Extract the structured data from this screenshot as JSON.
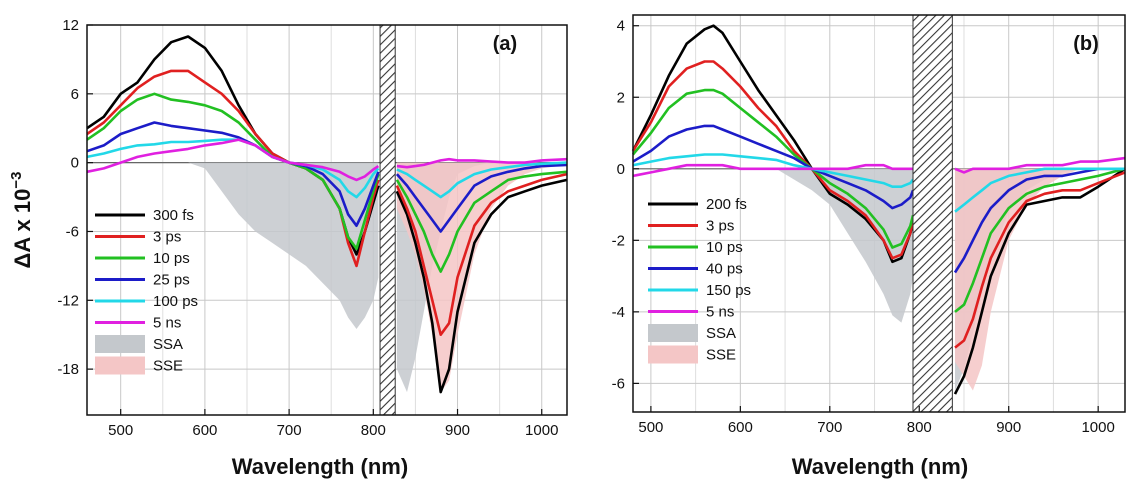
{
  "chart_data": [
    {
      "type": "line",
      "panel_label": "(a)",
      "xlabel": "Wavelength (nm)",
      "ylabel": "ΔA x 10",
      "ylabel_exponent": "−3",
      "xlim": [
        460,
        1030
      ],
      "ylim": [
        -22,
        12
      ],
      "xticks": [
        500,
        600,
        700,
        800,
        900,
        1000
      ],
      "yticks": [
        -18,
        -12,
        -6,
        0,
        6,
        12
      ],
      "grid": true,
      "legend_position": "bottom-left",
      "excluded_region": [
        808,
        826
      ],
      "x": [
        460,
        480,
        500,
        520,
        540,
        560,
        580,
        600,
        620,
        640,
        660,
        680,
        700,
        720,
        740,
        760,
        770,
        780,
        790,
        800,
        806,
        828,
        840,
        850,
        860,
        870,
        880,
        890,
        900,
        920,
        940,
        960,
        980,
        1000,
        1030
      ],
      "series": [
        {
          "name": "300 fs",
          "color": "#000000",
          "values": [
            3,
            4,
            6,
            7,
            9,
            10.5,
            11,
            10,
            8,
            5,
            2.5,
            0.8,
            0,
            -0.5,
            -1.5,
            -4,
            -6.5,
            -8,
            -6,
            -3.5,
            -2,
            -2.5,
            -4.5,
            -7,
            -10,
            -14,
            -20,
            -18,
            -13,
            -7,
            -4.5,
            -3,
            -2.5,
            -2,
            -1.5
          ]
        },
        {
          "name": "3 ps",
          "color": "#e02020",
          "values": [
            2.5,
            3.5,
            5,
            6.5,
            7.5,
            8,
            8,
            7,
            6,
            4.5,
            2.5,
            0.8,
            0,
            -0.5,
            -1.5,
            -4,
            -7,
            -9,
            -6,
            -3,
            -1.5,
            -2,
            -4,
            -6,
            -9,
            -12,
            -15,
            -14,
            -10,
            -5.5,
            -3.5,
            -2.5,
            -2,
            -1.5,
            -1
          ]
        },
        {
          "name": "10 ps",
          "color": "#22c022",
          "values": [
            2,
            3,
            4.5,
            5.5,
            6,
            5.5,
            5.3,
            5,
            4.5,
            3.5,
            2,
            0.5,
            0,
            -0.5,
            -1.5,
            -4,
            -6.5,
            -7.5,
            -5,
            -2.5,
            -1,
            -1.5,
            -3,
            -4.5,
            -6,
            -8,
            -9.5,
            -8,
            -6,
            -3.5,
            -2.5,
            -1.5,
            -1.2,
            -1,
            -0.8
          ]
        },
        {
          "name": "25 ps",
          "color": "#1c1cc8",
          "values": [
            1,
            1.5,
            2.5,
            3,
            3.5,
            3.2,
            3,
            2.8,
            2.6,
            2.2,
            1.5,
            0.5,
            0,
            -0.3,
            -1,
            -2.5,
            -4.5,
            -5.5,
            -4,
            -2,
            -0.8,
            -1,
            -2,
            -3,
            -4,
            -5,
            -6,
            -5,
            -4,
            -2,
            -1.2,
            -0.8,
            -0.5,
            -0.3,
            -0.2
          ]
        },
        {
          "name": "100 ps",
          "color": "#22d8e8",
          "values": [
            0.5,
            0.8,
            1.2,
            1.5,
            1.6,
            1.8,
            1.8,
            1.9,
            2,
            2,
            1.5,
            0.5,
            0,
            -0.2,
            -0.6,
            -1.5,
            -2.5,
            -3,
            -2.2,
            -1,
            -0.5,
            -0.6,
            -1,
            -1.5,
            -2,
            -2.5,
            -3,
            -2.5,
            -1.8,
            -1,
            -0.6,
            -0.4,
            -0.2,
            -0.1,
            0
          ]
        },
        {
          "name": "5 ns",
          "color": "#e020e0",
          "values": [
            -0.8,
            -0.5,
            0,
            0.5,
            0.8,
            1,
            1.2,
            1.5,
            1.7,
            2,
            1.5,
            0.5,
            0,
            -0.2,
            -0.4,
            -0.8,
            -1.2,
            -1.5,
            -1.2,
            -0.6,
            -0.3,
            -0.3,
            -0.4,
            -0.3,
            -0.2,
            0,
            0.2,
            0.3,
            0.2,
            0.2,
            0.1,
            0,
            0,
            0.2,
            0.3
          ]
        },
        {
          "name": "SSA",
          "color": "#c4c8cc",
          "fill": true,
          "values": [
            0,
            0,
            0,
            0,
            0,
            0,
            0,
            -0.5,
            -2.5,
            -4.5,
            -6,
            -7,
            -8,
            -9,
            -10.5,
            -12,
            -13.5,
            -14.5,
            -13.5,
            -12,
            -10,
            -18,
            -20,
            -17,
            -13,
            -9,
            -6,
            -3,
            -1,
            -0.3,
            0,
            0,
            0,
            0,
            0
          ]
        },
        {
          "name": "SSE",
          "color": "#f4c6c6",
          "fill": true,
          "values": [
            0,
            0,
            0,
            0,
            0,
            0,
            0,
            0,
            0,
            0,
            0,
            0,
            0,
            0,
            0,
            0,
            0,
            0,
            0,
            0,
            0,
            -4,
            -6,
            -8,
            -11,
            -15,
            -20,
            -19,
            -15,
            -8,
            -4,
            -2,
            -1,
            -0.5,
            -0.2
          ]
        }
      ]
    },
    {
      "type": "line",
      "panel_label": "(b)",
      "xlabel": "Wavelength (nm)",
      "ylabel": "",
      "xlim": [
        480,
        1030
      ],
      "ylim": [
        -6.8,
        4.3
      ],
      "xticks": [
        500,
        600,
        700,
        800,
        900,
        1000
      ],
      "yticks": [
        -6,
        -4,
        -2,
        0,
        2,
        4
      ],
      "grid": true,
      "legend_position": "bottom-left",
      "excluded_region": [
        793,
        837
      ],
      "x": [
        480,
        500,
        520,
        540,
        560,
        570,
        580,
        600,
        620,
        640,
        660,
        680,
        700,
        720,
        740,
        760,
        770,
        780,
        790,
        793,
        840,
        850,
        860,
        870,
        880,
        900,
        920,
        940,
        960,
        980,
        1000,
        1030
      ],
      "series": [
        {
          "name": "200 fs",
          "color": "#000000",
          "values": [
            0.5,
            1.5,
            2.6,
            3.5,
            3.9,
            4,
            3.8,
            3,
            2.2,
            1.5,
            0.8,
            0,
            -0.7,
            -1,
            -1.4,
            -2,
            -2.6,
            -2.5,
            -1.8,
            -1.5,
            -6.3,
            -5.8,
            -5,
            -4,
            -3,
            -1.8,
            -1,
            -0.9,
            -0.8,
            -0.8,
            -0.5,
            0
          ]
        },
        {
          "name": "3 ps",
          "color": "#e02020",
          "values": [
            0.5,
            1.3,
            2.3,
            2.8,
            3,
            3,
            2.8,
            2.3,
            1.7,
            1.2,
            0.5,
            0,
            -0.6,
            -0.9,
            -1.3,
            -2,
            -2.5,
            -2.4,
            -1.8,
            -1.4,
            -5,
            -4.8,
            -4.2,
            -3.3,
            -2.5,
            -1.5,
            -0.9,
            -0.7,
            -0.6,
            -0.6,
            -0.4,
            -0.1
          ]
        },
        {
          "name": "10 ps",
          "color": "#22c022",
          "values": [
            0.4,
            1,
            1.7,
            2.1,
            2.2,
            2.2,
            2.1,
            1.7,
            1.3,
            0.9,
            0.4,
            0,
            -0.4,
            -0.7,
            -1.1,
            -1.7,
            -2.2,
            -2.1,
            -1.6,
            -1.3,
            -4,
            -3.8,
            -3.2,
            -2.5,
            -1.8,
            -1.1,
            -0.7,
            -0.5,
            -0.4,
            -0.3,
            -0.2,
            0
          ]
        },
        {
          "name": "40 ps",
          "color": "#1c1cc8",
          "values": [
            0.2,
            0.5,
            0.9,
            1.1,
            1.2,
            1.2,
            1.1,
            0.9,
            0.7,
            0.5,
            0.3,
            0,
            -0.2,
            -0.4,
            -0.6,
            -0.9,
            -1.1,
            -1,
            -0.8,
            -0.6,
            -2.9,
            -2.5,
            -2,
            -1.5,
            -1.1,
            -0.6,
            -0.3,
            -0.2,
            -0.2,
            -0.1,
            0,
            0
          ]
        },
        {
          "name": "150 ps",
          "color": "#22d8e8",
          "values": [
            0.1,
            0.2,
            0.3,
            0.35,
            0.4,
            0.4,
            0.4,
            0.35,
            0.3,
            0.25,
            0.1,
            0,
            -0.1,
            -0.2,
            -0.3,
            -0.4,
            -0.5,
            -0.5,
            -0.4,
            -0.3,
            -1.2,
            -1,
            -0.8,
            -0.6,
            -0.4,
            -0.2,
            -0.1,
            0,
            0,
            0,
            0,
            0
          ]
        },
        {
          "name": "5 ns",
          "color": "#e020e0",
          "values": [
            -0.2,
            -0.1,
            0,
            0.1,
            0.1,
            0.1,
            0.1,
            0,
            0,
            0,
            0,
            0,
            0,
            0,
            0.1,
            0.1,
            0,
            0,
            0,
            0,
            0,
            -0.1,
            0,
            0,
            0,
            0,
            0.1,
            0.1,
            0.1,
            0.2,
            0.2,
            0.3
          ]
        },
        {
          "name": "SSA",
          "color": "#c4c8cc",
          "fill": true,
          "values": [
            0,
            0,
            0,
            0,
            0,
            0,
            0,
            0,
            0,
            0,
            -0.3,
            -0.6,
            -1,
            -1.8,
            -2.6,
            -3.5,
            -4.1,
            -4.3,
            -3.5,
            -3,
            -6.2,
            -5.6,
            -4.6,
            -3.5,
            -2.5,
            -1.2,
            -0.6,
            -0.3,
            -0.1,
            0,
            0,
            0
          ]
        },
        {
          "name": "SSE",
          "color": "#f4c6c6",
          "fill": true,
          "values": [
            0,
            0,
            0,
            0,
            0,
            0,
            0,
            0,
            0,
            0,
            0,
            0,
            0,
            0,
            0,
            0,
            0,
            0,
            0,
            0,
            -5.4,
            -5.8,
            -6.2,
            -5.5,
            -4,
            -2,
            -1,
            -0.5,
            -0.2,
            0,
            0,
            0
          ]
        }
      ]
    }
  ]
}
